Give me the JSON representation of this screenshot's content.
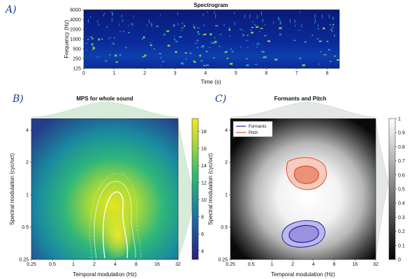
{
  "panels": {
    "a": "A)",
    "b": "B)",
    "c": "C)"
  },
  "colors": {
    "spectrogram_bg": "#0b1e8a",
    "mps_low": "#2d2d7a",
    "mps_high": "#f5e61e",
    "marginal_fill": "#cfe8d4",
    "formants": "#2222aa",
    "pitch": "#e0502a"
  },
  "chart_data": [
    {
      "type": "heatmap",
      "title": "Spectrogram",
      "xlabel": "Time (s)",
      "ylabel": "Frequency (Hz)",
      "x_ticks": [
        "0",
        "1",
        "2",
        "3",
        "4",
        "5",
        "6",
        "7",
        "8"
      ],
      "y_ticks": [
        "125",
        "250",
        "500",
        "1000",
        "2000",
        "4000",
        "8000"
      ],
      "xlim": [
        0,
        8.4
      ],
      "ylim": [
        125,
        8000
      ],
      "y_scale": "log"
    },
    {
      "type": "heatmap",
      "title": "MPS for whole sound",
      "xlabel": "Temporal modulation (Hz)",
      "ylabel": "Spectral modulation (cyc/oct)",
      "x_ticks": [
        "0.25",
        "0.5",
        "1",
        "2",
        "4",
        "8",
        "16",
        "32"
      ],
      "y_ticks": [
        "0.25",
        "0.5",
        "1",
        "2",
        "4"
      ],
      "x_scale": "log",
      "y_scale": "log",
      "colorbar_ticks": [
        "4",
        "6",
        "8",
        "10",
        "12",
        "14",
        "16",
        "18"
      ],
      "colorbar_range": [
        3,
        19.5
      ],
      "peak": {
        "temporal_hz": 3.5,
        "spectral_cyc_oct": 0.45
      }
    },
    {
      "type": "heatmap",
      "title": "Formants and Pitch",
      "xlabel": "Temporal modulation (Hz)",
      "ylabel": "Spectral modulation (cyc/oct)",
      "x_ticks": [
        "0.25",
        "0.5",
        "1",
        "2",
        "4",
        "8",
        "16",
        "32"
      ],
      "y_ticks": [
        "0.25",
        "0.5",
        "1",
        "2",
        "4"
      ],
      "x_scale": "log",
      "y_scale": "log",
      "colorbar_ticks": [
        "0",
        "0.1",
        "0.2",
        "0.3",
        "0.4",
        "0.5",
        "0.6",
        "0.7",
        "0.8",
        "0.9",
        "1"
      ],
      "colorbar_range": [
        0,
        1
      ],
      "legend": [
        "Formants",
        "Pitch"
      ],
      "legend_position": "top-left",
      "regions": [
        {
          "name": "Formants",
          "temporal_hz": 3.5,
          "spectral_cyc_oct": 0.45
        },
        {
          "name": "Pitch",
          "temporal_hz": 3.5,
          "spectral_cyc_oct": 1.85
        }
      ]
    }
  ]
}
